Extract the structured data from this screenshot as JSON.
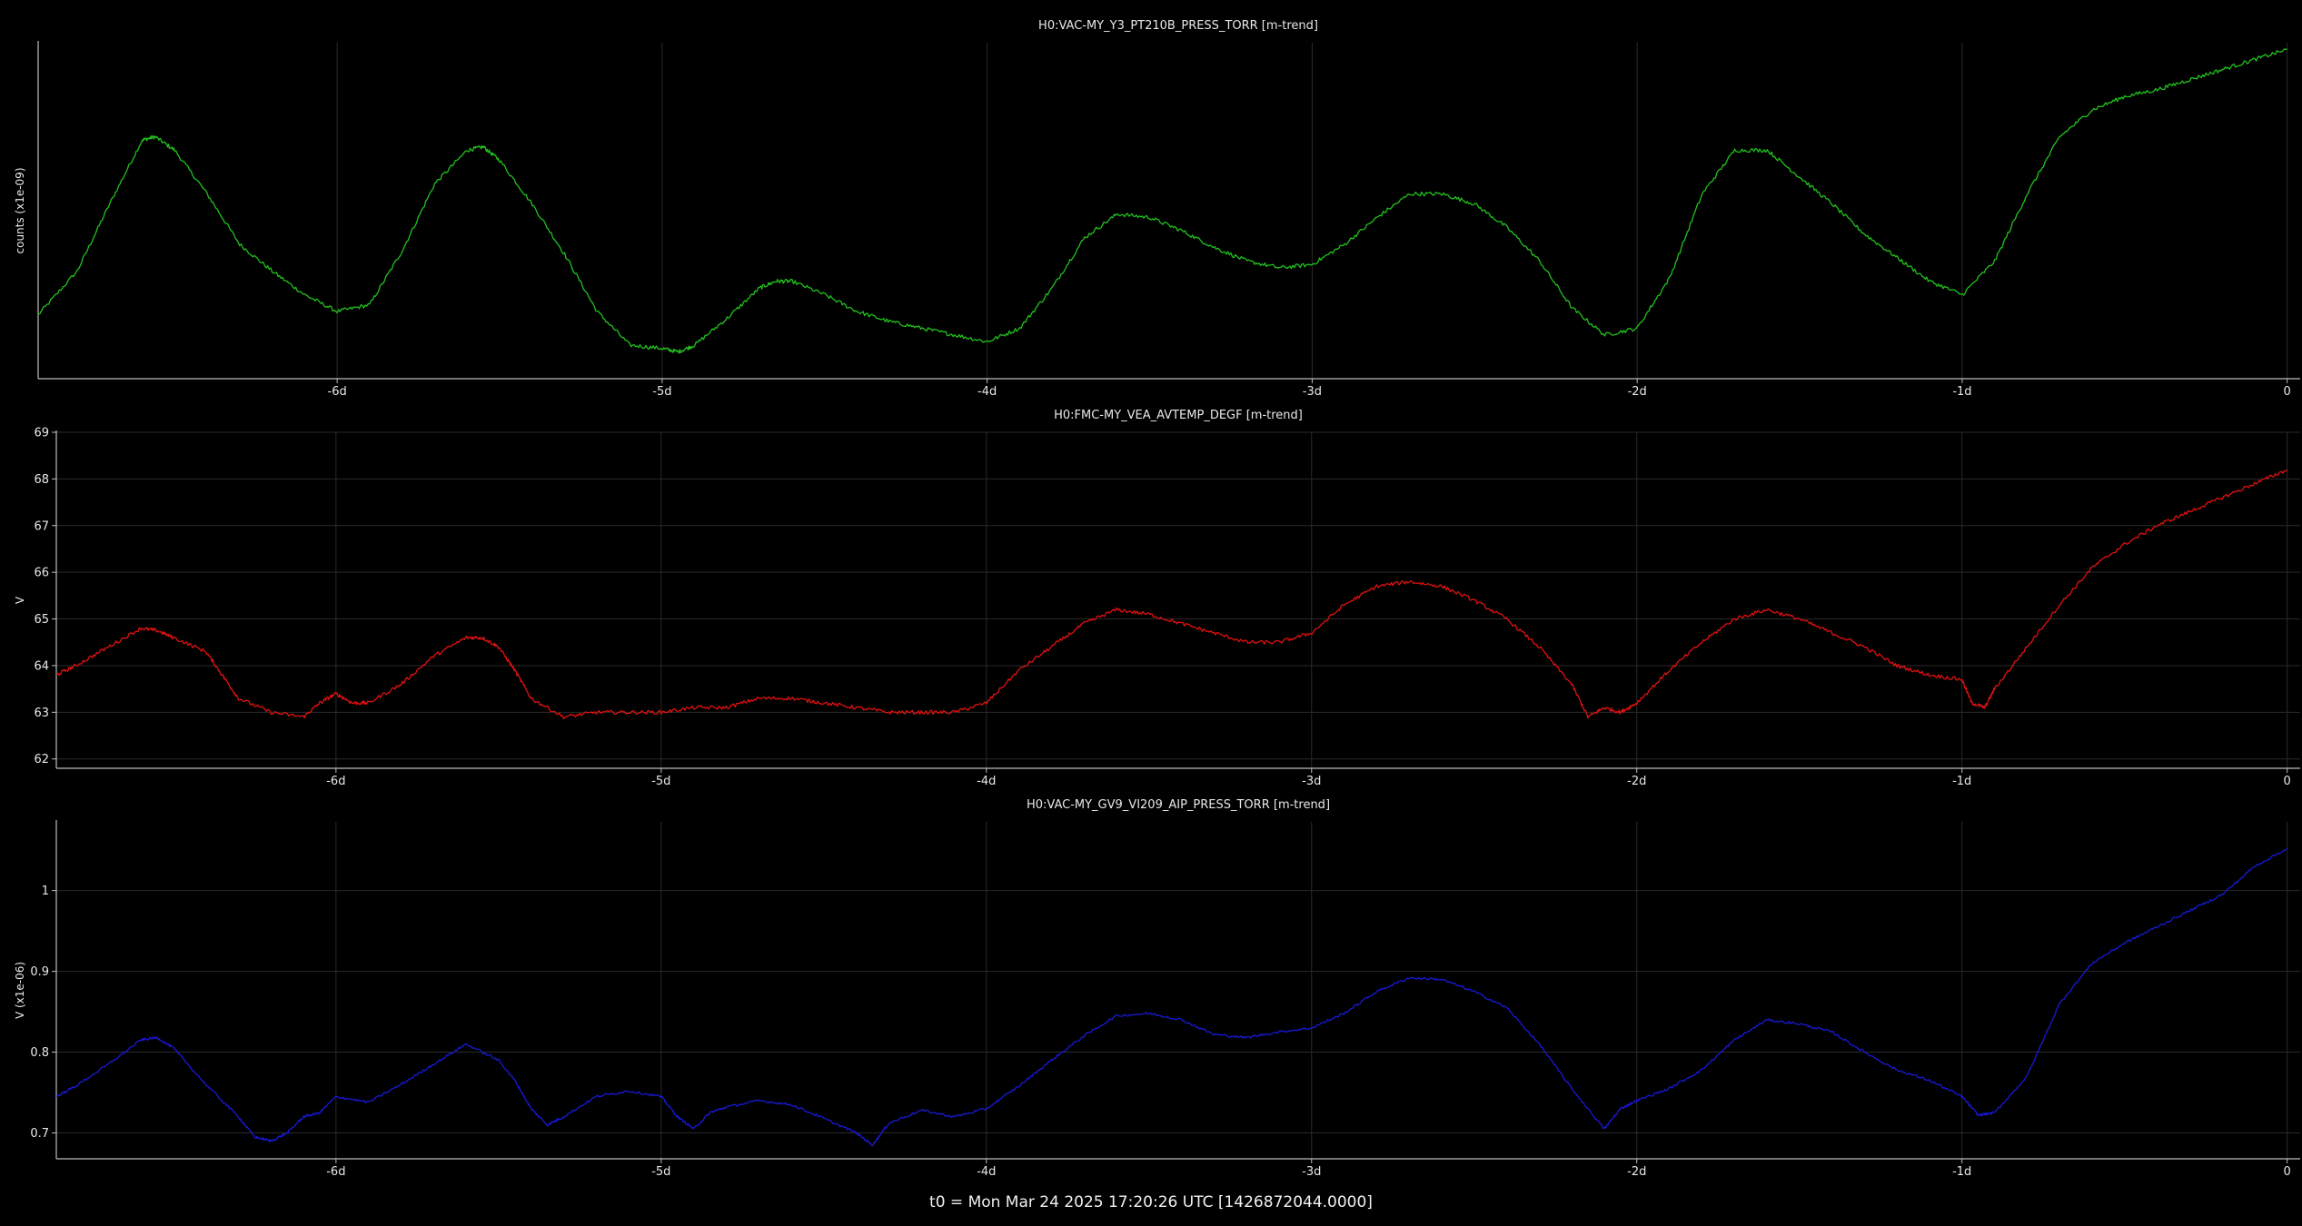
{
  "footer": {
    "t0_label": "t0 = Mon Mar 24 2025 17:20:26 UTC [1426872044.0000]"
  },
  "colors": {
    "background": "#000000",
    "grid": "#2a2a2a",
    "axis": "#bdbdbd",
    "green": "#22c01e",
    "red": "#e01010",
    "blue": "#1818d8"
  },
  "chart_data": [
    {
      "type": "line",
      "title": "H0:VAC-MY_Y3_PT210B_PRESS_TORR [m-trend]",
      "ylabel": "counts (x1e-09)",
      "xlabel": "",
      "x_ticks": [
        -6,
        -5,
        -4,
        -3,
        -2,
        -1,
        0
      ],
      "x_tick_labels": [
        "-6d",
        "-5d",
        "-4d",
        "-3d",
        "-2d",
        "-1d",
        "0"
      ],
      "xlim": [
        -6.92,
        0.04
      ],
      "y_ticks": [],
      "y_tick_labels": [],
      "ylim": [
        0,
        1
      ],
      "grid": true,
      "noise": 0.006,
      "series": [
        {
          "color": "#22c01e",
          "points": [
            [
              -6.92,
              0.19
            ],
            [
              -6.8,
              0.32
            ],
            [
              -6.7,
              0.52
            ],
            [
              -6.6,
              0.71
            ],
            [
              -6.56,
              0.72
            ],
            [
              -6.5,
              0.68
            ],
            [
              -6.4,
              0.55
            ],
            [
              -6.3,
              0.4
            ],
            [
              -6.2,
              0.32
            ],
            [
              -6.1,
              0.25
            ],
            [
              -6.0,
              0.2
            ],
            [
              -5.9,
              0.22
            ],
            [
              -5.8,
              0.38
            ],
            [
              -5.7,
              0.58
            ],
            [
              -5.6,
              0.68
            ],
            [
              -5.55,
              0.69
            ],
            [
              -5.5,
              0.65
            ],
            [
              -5.4,
              0.52
            ],
            [
              -5.3,
              0.37
            ],
            [
              -5.2,
              0.2
            ],
            [
              -5.1,
              0.1
            ],
            [
              -5.0,
              0.09
            ],
            [
              -4.95,
              0.08
            ],
            [
              -4.9,
              0.1
            ],
            [
              -4.8,
              0.18
            ],
            [
              -4.7,
              0.27
            ],
            [
              -4.65,
              0.29
            ],
            [
              -4.6,
              0.29
            ],
            [
              -4.5,
              0.25
            ],
            [
              -4.4,
              0.2
            ],
            [
              -4.3,
              0.17
            ],
            [
              -4.2,
              0.15
            ],
            [
              -4.1,
              0.13
            ],
            [
              -4.0,
              0.11
            ],
            [
              -3.9,
              0.15
            ],
            [
              -3.8,
              0.27
            ],
            [
              -3.7,
              0.42
            ],
            [
              -3.6,
              0.49
            ],
            [
              -3.5,
              0.48
            ],
            [
              -3.4,
              0.44
            ],
            [
              -3.3,
              0.39
            ],
            [
              -3.2,
              0.35
            ],
            [
              -3.1,
              0.33
            ],
            [
              -3.0,
              0.34
            ],
            [
              -2.9,
              0.4
            ],
            [
              -2.8,
              0.48
            ],
            [
              -2.7,
              0.55
            ],
            [
              -2.6,
              0.55
            ],
            [
              -2.5,
              0.52
            ],
            [
              -2.4,
              0.45
            ],
            [
              -2.3,
              0.35
            ],
            [
              -2.2,
              0.21
            ],
            [
              -2.1,
              0.13
            ],
            [
              -2.0,
              0.15
            ],
            [
              -1.9,
              0.3
            ],
            [
              -1.8,
              0.55
            ],
            [
              -1.7,
              0.68
            ],
            [
              -1.6,
              0.68
            ],
            [
              -1.5,
              0.6
            ],
            [
              -1.4,
              0.52
            ],
            [
              -1.3,
              0.43
            ],
            [
              -1.2,
              0.36
            ],
            [
              -1.1,
              0.29
            ],
            [
              -1.0,
              0.25
            ],
            [
              -0.9,
              0.35
            ],
            [
              -0.8,
              0.55
            ],
            [
              -0.7,
              0.72
            ],
            [
              -0.6,
              0.8
            ],
            [
              -0.5,
              0.84
            ],
            [
              -0.4,
              0.86
            ],
            [
              -0.3,
              0.89
            ],
            [
              -0.2,
              0.92
            ],
            [
              -0.1,
              0.95
            ],
            [
              0.0,
              0.98
            ]
          ]
        }
      ]
    },
    {
      "type": "line",
      "title": "H0:FMC-MY_VEA_AVTEMP_DEGF [m-trend]",
      "ylabel": "V",
      "xlabel": "",
      "x_ticks": [
        -6,
        -5,
        -4,
        -3,
        -2,
        -1,
        0
      ],
      "x_tick_labels": [
        "-6d",
        "-5d",
        "-4d",
        "-3d",
        "-2d",
        "-1d",
        "0"
      ],
      "xlim": [
        -6.86,
        0.04
      ],
      "y_ticks": [
        62,
        63,
        64,
        65,
        66,
        67,
        68,
        69
      ],
      "y_tick_labels": [
        "62",
        "63",
        "64",
        "65",
        "66",
        "67",
        "68",
        "69"
      ],
      "ylim": [
        61.8,
        69.0
      ],
      "grid": true,
      "noise": 0.04,
      "series": [
        {
          "color": "#e01010",
          "points": [
            [
              -6.86,
              63.8
            ],
            [
              -6.8,
              64.0
            ],
            [
              -6.7,
              64.4
            ],
            [
              -6.6,
              64.8
            ],
            [
              -6.55,
              64.75
            ],
            [
              -6.5,
              64.6
            ],
            [
              -6.4,
              64.3
            ],
            [
              -6.35,
              63.8
            ],
            [
              -6.3,
              63.3
            ],
            [
              -6.2,
              63.0
            ],
            [
              -6.1,
              62.9
            ],
            [
              -6.05,
              63.2
            ],
            [
              -6.0,
              63.4
            ],
            [
              -5.95,
              63.2
            ],
            [
              -5.9,
              63.2
            ],
            [
              -5.8,
              63.6
            ],
            [
              -5.7,
              64.2
            ],
            [
              -5.6,
              64.6
            ],
            [
              -5.55,
              64.6
            ],
            [
              -5.5,
              64.4
            ],
            [
              -5.45,
              63.9
            ],
            [
              -5.4,
              63.3
            ],
            [
              -5.3,
              62.9
            ],
            [
              -5.2,
              63.0
            ],
            [
              -5.1,
              63.0
            ],
            [
              -5.0,
              63.0
            ],
            [
              -4.9,
              63.1
            ],
            [
              -4.8,
              63.1
            ],
            [
              -4.7,
              63.3
            ],
            [
              -4.6,
              63.3
            ],
            [
              -4.5,
              63.2
            ],
            [
              -4.4,
              63.1
            ],
            [
              -4.3,
              63.0
            ],
            [
              -4.2,
              63.0
            ],
            [
              -4.1,
              63.0
            ],
            [
              -4.0,
              63.2
            ],
            [
              -3.9,
              63.9
            ],
            [
              -3.8,
              64.4
            ],
            [
              -3.7,
              64.9
            ],
            [
              -3.6,
              65.2
            ],
            [
              -3.5,
              65.1
            ],
            [
              -3.4,
              64.9
            ],
            [
              -3.3,
              64.7
            ],
            [
              -3.2,
              64.5
            ],
            [
              -3.1,
              64.5
            ],
            [
              -3.0,
              64.7
            ],
            [
              -2.9,
              65.3
            ],
            [
              -2.8,
              65.7
            ],
            [
              -2.7,
              65.8
            ],
            [
              -2.6,
              65.7
            ],
            [
              -2.5,
              65.4
            ],
            [
              -2.4,
              65.0
            ],
            [
              -2.3,
              64.4
            ],
            [
              -2.2,
              63.6
            ],
            [
              -2.15,
              62.9
            ],
            [
              -2.1,
              63.1
            ],
            [
              -2.05,
              63.0
            ],
            [
              -2.0,
              63.2
            ],
            [
              -1.9,
              63.9
            ],
            [
              -1.8,
              64.5
            ],
            [
              -1.7,
              65.0
            ],
            [
              -1.6,
              65.2
            ],
            [
              -1.5,
              65.0
            ],
            [
              -1.4,
              64.7
            ],
            [
              -1.3,
              64.4
            ],
            [
              -1.2,
              64.0
            ],
            [
              -1.1,
              63.8
            ],
            [
              -1.0,
              63.7
            ],
            [
              -0.97,
              63.2
            ],
            [
              -0.93,
              63.1
            ],
            [
              -0.9,
              63.5
            ],
            [
              -0.8,
              64.4
            ],
            [
              -0.7,
              65.3
            ],
            [
              -0.6,
              66.1
            ],
            [
              -0.5,
              66.6
            ],
            [
              -0.4,
              67.0
            ],
            [
              -0.3,
              67.3
            ],
            [
              -0.2,
              67.6
            ],
            [
              -0.1,
              67.9
            ],
            [
              0.0,
              68.2
            ]
          ]
        }
      ]
    },
    {
      "type": "line",
      "title": "H0:VAC-MY_GV9_VI209_AIP_PRESS_TORR [m-trend]",
      "ylabel": "V (x1e-06)",
      "xlabel": "",
      "x_ticks": [
        -6,
        -5,
        -4,
        -3,
        -2,
        -1,
        0
      ],
      "x_tick_labels": [
        "-6d",
        "-5d",
        "-4d",
        "-3d",
        "-2d",
        "-1d",
        "0"
      ],
      "xlim": [
        -6.86,
        0.04
      ],
      "y_ticks": [
        0.7,
        0.8,
        0.9,
        1.0
      ],
      "y_tick_labels": [
        "0.7",
        "0.8",
        "0.9",
        "1"
      ],
      "ylim": [
        0.668,
        1.085
      ],
      "grid": true,
      "noise": 0.0015,
      "series": [
        {
          "color": "#1818d8",
          "points": [
            [
              -6.86,
              0.745
            ],
            [
              -6.8,
              0.758
            ],
            [
              -6.7,
              0.785
            ],
            [
              -6.6,
              0.815
            ],
            [
              -6.55,
              0.818
            ],
            [
              -6.5,
              0.805
            ],
            [
              -6.4,
              0.76
            ],
            [
              -6.3,
              0.72
            ],
            [
              -6.25,
              0.695
            ],
            [
              -6.2,
              0.69
            ],
            [
              -6.15,
              0.7
            ],
            [
              -6.1,
              0.72
            ],
            [
              -6.05,
              0.725
            ],
            [
              -6.0,
              0.745
            ],
            [
              -5.9,
              0.738
            ],
            [
              -5.8,
              0.76
            ],
            [
              -5.7,
              0.785
            ],
            [
              -5.6,
              0.81
            ],
            [
              -5.5,
              0.79
            ],
            [
              -5.45,
              0.765
            ],
            [
              -5.4,
              0.73
            ],
            [
              -5.35,
              0.71
            ],
            [
              -5.3,
              0.72
            ],
            [
              -5.2,
              0.745
            ],
            [
              -5.1,
              0.752
            ],
            [
              -5.0,
              0.745
            ],
            [
              -4.95,
              0.72
            ],
            [
              -4.9,
              0.705
            ],
            [
              -4.85,
              0.725
            ],
            [
              -4.8,
              0.732
            ],
            [
              -4.7,
              0.74
            ],
            [
              -4.6,
              0.735
            ],
            [
              -4.5,
              0.718
            ],
            [
              -4.4,
              0.7
            ],
            [
              -4.35,
              0.685
            ],
            [
              -4.3,
              0.712
            ],
            [
              -4.2,
              0.728
            ],
            [
              -4.1,
              0.72
            ],
            [
              -4.0,
              0.73
            ],
            [
              -3.9,
              0.758
            ],
            [
              -3.8,
              0.79
            ],
            [
              -3.7,
              0.82
            ],
            [
              -3.6,
              0.845
            ],
            [
              -3.5,
              0.848
            ],
            [
              -3.4,
              0.84
            ],
            [
              -3.3,
              0.822
            ],
            [
              -3.2,
              0.818
            ],
            [
              -3.1,
              0.825
            ],
            [
              -3.0,
              0.83
            ],
            [
              -2.9,
              0.848
            ],
            [
              -2.8,
              0.875
            ],
            [
              -2.7,
              0.892
            ],
            [
              -2.6,
              0.89
            ],
            [
              -2.5,
              0.875
            ],
            [
              -2.4,
              0.855
            ],
            [
              -2.3,
              0.81
            ],
            [
              -2.2,
              0.755
            ],
            [
              -2.1,
              0.705
            ],
            [
              -2.05,
              0.73
            ],
            [
              -2.0,
              0.74
            ],
            [
              -1.9,
              0.755
            ],
            [
              -1.8,
              0.778
            ],
            [
              -1.7,
              0.815
            ],
            [
              -1.6,
              0.84
            ],
            [
              -1.5,
              0.835
            ],
            [
              -1.4,
              0.825
            ],
            [
              -1.3,
              0.8
            ],
            [
              -1.2,
              0.778
            ],
            [
              -1.1,
              0.765
            ],
            [
              -1.0,
              0.745
            ],
            [
              -0.95,
              0.722
            ],
            [
              -0.9,
              0.725
            ],
            [
              -0.8,
              0.77
            ],
            [
              -0.7,
              0.86
            ],
            [
              -0.6,
              0.91
            ],
            [
              -0.5,
              0.935
            ],
            [
              -0.4,
              0.955
            ],
            [
              -0.3,
              0.975
            ],
            [
              -0.2,
              0.995
            ],
            [
              -0.1,
              1.03
            ],
            [
              0.0,
              1.052
            ]
          ]
        }
      ]
    }
  ]
}
